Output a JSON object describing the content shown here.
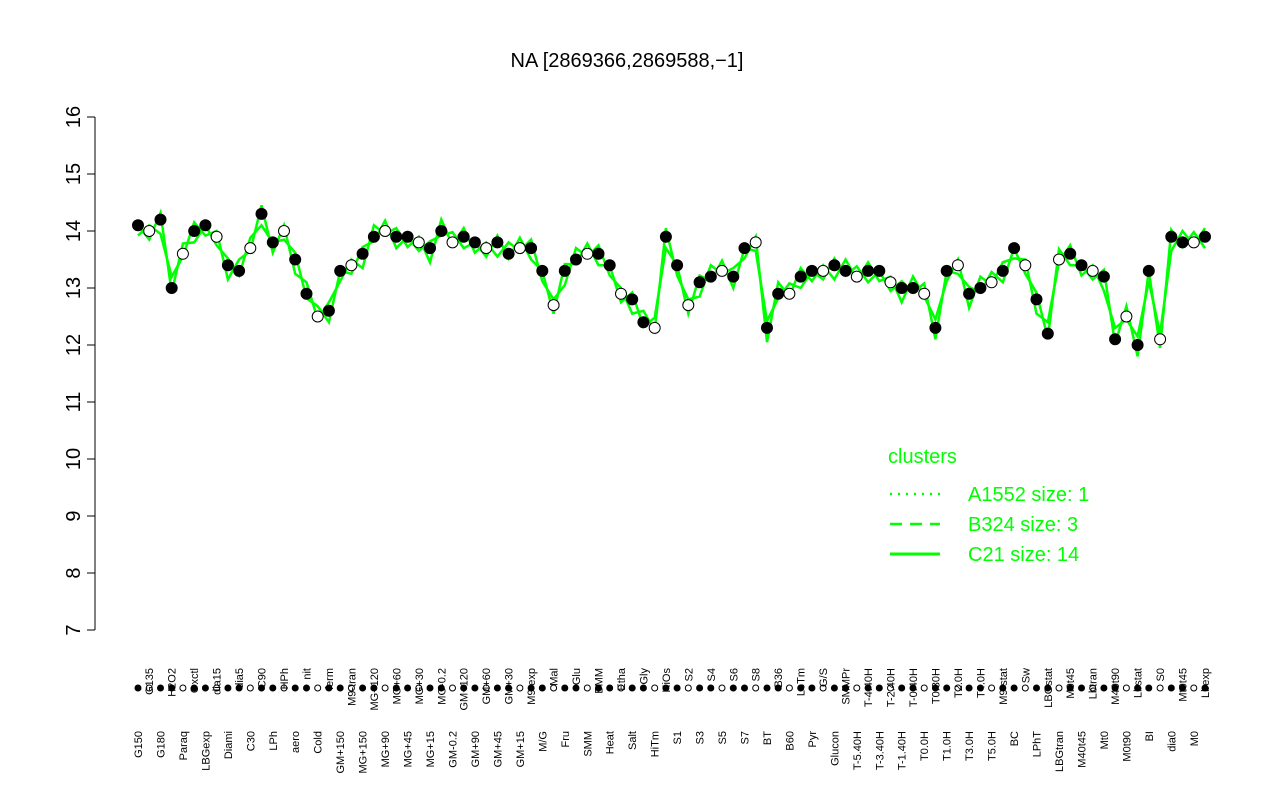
{
  "chart_data": {
    "type": "scatter",
    "title": "NA [2869366,2869588,−1]",
    "xlabel": "",
    "ylabel": "",
    "ylim": [
      7,
      16
    ],
    "yticks": [
      7,
      8,
      9,
      10,
      11,
      12,
      13,
      14,
      15,
      16
    ],
    "grid": false,
    "colors": {
      "line": "#00ff00",
      "point_fill": "#000000",
      "point_hollow": "#ffffff",
      "axis": "#000000"
    },
    "categories": [
      "G150",
      "G135",
      "G180",
      "H2O2",
      "Paraq",
      "Oxctl",
      "LBGexp",
      "dia15",
      "Diami",
      "dia5",
      "C30",
      "C90",
      "LPh",
      "HPh",
      "aero",
      "nit",
      "Cold",
      "ferm",
      "GM+150",
      "M9-tran",
      "MG+150",
      "MG+120",
      "MG+90",
      "MG+60",
      "MG+45",
      "MG+30",
      "MG+15",
      "MG-0.2",
      "GM-0.2",
      "GM+120",
      "GM+90",
      "GM+60",
      "GM+45",
      "GM+30",
      "GM+15",
      "M9-exp",
      "M/G",
      "Mal",
      "Fru",
      "Glu",
      "SMM",
      "BMM",
      "Heat",
      "Etha",
      "Salt",
      "Gly",
      "HiTm",
      "HiOs",
      "S1",
      "S2",
      "S3",
      "S4",
      "S5",
      "S6",
      "S7",
      "S8",
      "BT",
      "B36",
      "B60",
      "LoTm",
      "Pyr",
      "G/S",
      "Glucon",
      "SMMPr",
      "T-5.40H",
      "T-4.40H",
      "T-3.40H",
      "T-2.40H",
      "T-1.40H",
      "T-0.40H",
      "T0.0H",
      "T0.30H",
      "T1.0H",
      "T2.0H",
      "T3.0H",
      "T4.0H",
      "T5.0H",
      "M9-stat",
      "BC",
      "Sw",
      "LPhT",
      "LBGstat",
      "LBGtran",
      "M0t45",
      "M40t45",
      "Lbtran",
      "Mt0",
      "M40t90",
      "M0t90",
      "Lbstat",
      "BI",
      "S0",
      "dia0",
      "Mt0t45",
      "M0",
      "Lbexp"
    ],
    "series": [
      {
        "values": [
          14.1,
          14.0,
          14.2,
          13.0,
          13.6,
          14.0,
          14.1,
          13.9,
          13.4,
          13.3,
          13.7,
          14.3,
          13.8,
          14.0,
          13.5,
          12.9,
          12.5,
          12.6,
          13.3,
          13.4,
          13.6,
          13.9,
          14.0,
          13.9,
          13.9,
          13.8,
          13.7,
          14.0,
          13.8,
          13.9,
          13.8,
          13.7,
          13.8,
          13.6,
          13.7,
          13.7,
          13.3,
          12.7,
          13.3,
          13.5,
          13.6,
          13.6,
          13.4,
          12.9,
          12.8,
          12.4,
          12.3,
          13.9,
          13.4,
          12.7,
          13.1,
          13.2,
          13.3,
          13.2,
          13.7,
          13.8,
          12.3,
          12.9,
          12.9,
          13.2,
          13.3,
          13.3,
          13.4,
          13.3,
          13.2,
          13.3,
          13.3,
          13.1,
          13.0,
          13.0,
          12.9,
          12.3,
          13.3,
          13.4,
          12.9,
          13.0,
          13.1,
          13.3,
          13.7,
          13.4,
          12.8,
          12.2,
          13.5,
          13.6,
          13.4,
          13.3,
          13.2,
          12.1,
          12.5,
          12.0,
          13.3,
          12.1,
          13.9,
          13.8,
          13.8,
          13.9
        ]
      }
    ],
    "legend": {
      "title": "clusters",
      "position": "right",
      "entries": [
        {
          "label": "A1552 size: 1",
          "style": "dotted"
        },
        {
          "label": "B324 size: 3",
          "style": "dashed"
        },
        {
          "label": "C21 size: 14",
          "style": "solid"
        }
      ]
    }
  }
}
